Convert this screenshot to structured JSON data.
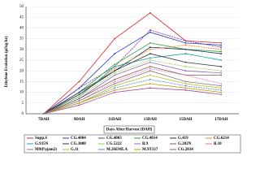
{
  "chart_data": {
    "type": "line",
    "y_label": "Ethylene Evolution (µl/kg/hr)",
    "x_label": "Days After Harvest (DAH)",
    "categories": [
      "7DAH",
      "9DAH",
      "11DAH",
      "13DAH",
      "15DAH",
      "17DAH"
    ],
    "ylim": [
      0,
      50
    ],
    "yticks": [
      0,
      5,
      10,
      15,
      20,
      25,
      30,
      35,
      40,
      45,
      50
    ],
    "series": [
      {
        "name": "Supp.S",
        "color": "#d62728",
        "values": [
          0,
          15,
          35,
          47,
          34,
          33
        ]
      },
      {
        "name": "CG.4004",
        "color": "#1f3fbf",
        "values": [
          0,
          12,
          28,
          38,
          33,
          32
        ]
      },
      {
        "name": "CG.4003",
        "color": "#7b2d9e",
        "values": [
          0,
          12,
          22,
          39,
          34,
          31
        ]
      },
      {
        "name": "CG.4814",
        "color": "#2ca02c",
        "values": [
          0,
          10,
          23,
          33,
          30,
          29
        ]
      },
      {
        "name": "G.419",
        "color": "#17306b",
        "values": [
          0,
          10,
          20,
          31,
          30,
          28
        ]
      },
      {
        "name": "CG.6214",
        "color": "#ff7f0e",
        "values": [
          0,
          9,
          21,
          30,
          32,
          30
        ]
      },
      {
        "name": "G.935N",
        "color": "#17a2a2",
        "values": [
          0,
          8,
          22,
          26,
          28,
          25
        ]
      },
      {
        "name": "CG.3008",
        "color": "#333333",
        "values": [
          0,
          9,
          20,
          28,
          24,
          22
        ]
      },
      {
        "name": "CG.5222",
        "color": "#8fd14f",
        "values": [
          0,
          8,
          19,
          25,
          22,
          20
        ]
      },
      {
        "name": "B.9",
        "color": "#9467bd",
        "values": [
          0,
          7,
          18,
          24,
          20,
          19
        ]
      },
      {
        "name": "G.202N",
        "color": "#8c564b",
        "values": [
          0,
          7,
          16,
          22,
          18,
          18
        ]
      },
      {
        "name": "B.10",
        "color": "#e377c2",
        "values": [
          0,
          6,
          15,
          21,
          18,
          14
        ]
      },
      {
        "name": "M9(Pajam2)",
        "color": "#7f7f7f",
        "values": [
          0,
          6,
          14,
          20,
          15,
          13
        ]
      },
      {
        "name": "G.11",
        "color": "#bcbd22",
        "values": [
          0,
          5,
          13,
          18,
          14,
          12
        ]
      },
      {
        "name": "M.26EMLA",
        "color": "#4a90d9",
        "values": [
          0,
          5,
          12,
          16,
          13,
          11
        ]
      },
      {
        "name": "M.9T337",
        "color": "#c49c00",
        "values": [
          0,
          5,
          11,
          14,
          12,
          10
        ]
      },
      {
        "name": "CG.2034",
        "color": "#a05195",
        "values": [
          0,
          4,
          10,
          12,
          11,
          9
        ]
      }
    ]
  }
}
